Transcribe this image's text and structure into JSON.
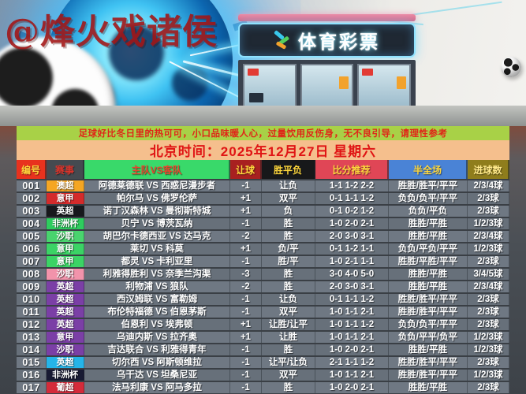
{
  "watermark": "@烽火戏诸侯",
  "hero": {
    "store_sign": "体育彩票"
  },
  "notice": "足球好比冬日里的热可可，小口品味暖人心，过量饮用反伤身，无不良引导，请理性参考",
  "datetime_bar": "北京时间：2025年12月27日 星期六",
  "colors": {
    "notice_bg": "#a8d147",
    "notice_text": "#e02418",
    "date_bg": "#f5bf8d",
    "date_text": "#e01414",
    "row_bg": "#6f7883",
    "row_text": "#ffffff"
  },
  "table": {
    "headers": [
      "编号",
      "赛事",
      "主队VS客队",
      "让球",
      "胜平负",
      "比分推荐",
      "半全场",
      "进球数"
    ],
    "header_bg": [
      "#e8321e",
      "#454a50",
      "#39d96a",
      "#a82020",
      "#17181a",
      "#e04656",
      "#4a83d6",
      "#8f7d1c"
    ],
    "header_fg": [
      "#ffd83d",
      "#d9342b",
      "#e8442e",
      "#ffd83d",
      "#ffd83d",
      "#ffd83d",
      "#ffd83d",
      "#ffe98a"
    ],
    "rows": [
      {
        "id": "001",
        "league": "澳超",
        "league_color": "#f5a623",
        "match": "阿德莱德联 VS 西惑尼漫步者",
        "handicap": "-1",
        "wdl": "让负",
        "scores": "1-1 1-2 2-2",
        "halffull": "胜胜/胜平/平平",
        "goals": "2/3/4球"
      },
      {
        "id": "002",
        "league": "意甲",
        "league_color": "#d42b2b",
        "match": "帕尔马 VS 佛罗伦萨",
        "handicap": "+1",
        "wdl": "双平",
        "scores": "0-1 1-1 1-2",
        "halffull": "负负/负平/平平",
        "goals": "2/3球"
      },
      {
        "id": "003",
        "league": "英超",
        "league_color": "#17181c",
        "match": "诺丁汉森林 VS 曼彻斯特城",
        "handicap": "+1",
        "wdl": "负",
        "scores": "0-1 0-2 1-2",
        "halffull": "负负/平负",
        "goals": "2/3球"
      },
      {
        "id": "004",
        "league": "非洲杯",
        "league_color": "#2ecc5e",
        "match": "贝宁 VS 博茨瓦纳",
        "handicap": "-1",
        "wdl": "胜",
        "scores": "1-0 2-0 2-1",
        "halffull": "胜胜/平胜",
        "goals": "1/2/3球"
      },
      {
        "id": "005",
        "league": "沙职",
        "league_color": "#49d46e",
        "match": "胡巴尔卡德西亚 VS 达马克",
        "handicap": "-2",
        "wdl": "胜",
        "scores": "2-0 3-0 3-1",
        "halffull": "胜胜/平胜",
        "goals": "2/3/4球"
      },
      {
        "id": "006",
        "league": "意甲",
        "league_color": "#3bd365",
        "match": "莱切 VS 科莫",
        "handicap": "+1",
        "wdl": "负/平",
        "scores": "0-1 1-2 1-1",
        "halffull": "负负/平负/平平",
        "goals": "1/2/3球"
      },
      {
        "id": "007",
        "league": "意甲",
        "league_color": "#3bd365",
        "match": "都灵 VS 卡利亚里",
        "handicap": "-1",
        "wdl": "胜/平",
        "scores": "1-0 2-1 1-1",
        "halffull": "胜胜/平胜/平平",
        "goals": "2/3球"
      },
      {
        "id": "008",
        "league": "沙职",
        "league_color": "#f293ab",
        "match": "利雅得胜利 VS 奈季兰沟渠",
        "handicap": "-3",
        "wdl": "胜",
        "scores": "3-0 4-0 5-0",
        "halffull": "胜胜/平胜",
        "goals": "3/4/5球"
      },
      {
        "id": "009",
        "league": "英超",
        "league_color": "#7b3fa6",
        "match": "利物浦 VS 狼队",
        "handicap": "-2",
        "wdl": "胜",
        "scores": "2-0 3-0 3-1",
        "halffull": "胜胜/平胜",
        "goals": "2/3/4球"
      },
      {
        "id": "010",
        "league": "英超",
        "league_color": "#7b3fa6",
        "match": "西汉姆联 VS 富勒姆",
        "handicap": "-1",
        "wdl": "让负",
        "scores": "0-1 1-1 1-2",
        "halffull": "胜胜/胜平/平平",
        "goals": "2/3球"
      },
      {
        "id": "011",
        "league": "英超",
        "league_color": "#7b3fa6",
        "match": "布伦特福德 VS 伯恩茅斯",
        "handicap": "-1",
        "wdl": "双平",
        "scores": "1-0 1-1 2-1",
        "halffull": "胜胜/胜平/平平",
        "goals": "2/3球"
      },
      {
        "id": "012",
        "league": "英超",
        "league_color": "#7b3fa6",
        "match": "伯恩利 VS 埃弗顿",
        "handicap": "+1",
        "wdl": "让胜/让平",
        "scores": "1-0 1-1 1-2",
        "halffull": "负负/负平/平平",
        "goals": "2/3球"
      },
      {
        "id": "013",
        "league": "意甲",
        "league_color": "#7b3fa6",
        "match": "乌迪内斯 VS 拉齐奥",
        "handicap": "+1",
        "wdl": "让胜",
        "scores": "1-0 1-1 2-1",
        "halffull": "负负/平平/负平",
        "goals": "1/2/3球"
      },
      {
        "id": "014",
        "league": "沙职",
        "league_color": "#7b3fa6",
        "match": "吉达联合 VS 利雅得青年",
        "handicap": "-1",
        "wdl": "胜",
        "scores": "1-0 2-0 2-1",
        "halffull": "胜胜/平胜",
        "goals": "1/2/3球"
      },
      {
        "id": "015",
        "league": "英超",
        "league_color": "#25b4e8",
        "match": "切尔西 VS 阿斯顿维拉",
        "handicap": "-1",
        "wdl": "让平/让负",
        "scores": "2-1 1-1 1-2",
        "halffull": "胜胜/胜平/平平",
        "goals": "2/3球"
      },
      {
        "id": "016",
        "league": "非洲杯",
        "league_color": "#181a33",
        "match": "乌干达 VS 坦桑尼亚",
        "handicap": "-1",
        "wdl": "双平",
        "scores": "1-0 1-1 2-1",
        "halffull": "胜胜/胜平/平平",
        "goals": "1/2/3球"
      },
      {
        "id": "017",
        "league": "葡超",
        "league_color": "#d42b3a",
        "match": "法马利康 VS 阿马多拉",
        "handicap": "-1",
        "wdl": "胜",
        "scores": "1-0 2-0 2-1",
        "halffull": "胜胜/平胜",
        "goals": "2/3球"
      }
    ]
  }
}
